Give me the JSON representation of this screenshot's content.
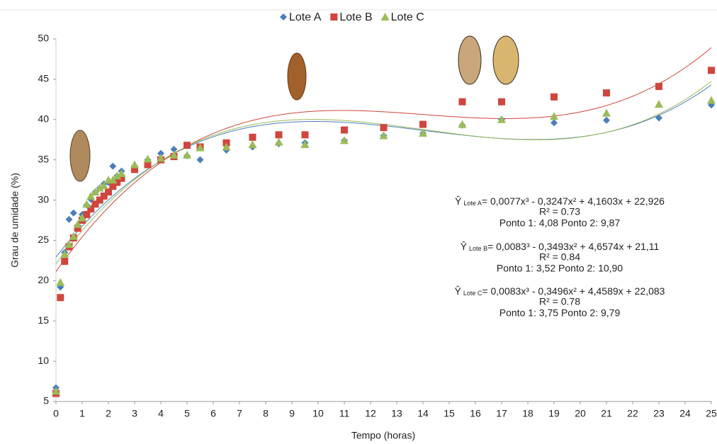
{
  "chart_data": {
    "type": "scatter",
    "xlabel": "Tempo (horas)",
    "ylabel": "Grau de umidade (%)",
    "x": [
      0,
      0.17,
      0.33,
      0.5,
      0.67,
      0.83,
      1,
      1.17,
      1.33,
      1.5,
      1.67,
      1.83,
      2,
      2.17,
      2.33,
      2.5,
      3,
      3.5,
      4,
      4.5,
      5,
      5.5,
      6.5,
      7.5,
      8.5,
      9.5,
      11,
      12.5,
      14,
      15.5,
      17,
      19,
      21,
      23,
      25
    ],
    "xlim": [
      0,
      25
    ],
    "ylim": [
      5,
      50
    ],
    "xticks": [
      0,
      1,
      2,
      3,
      4,
      5,
      6,
      7,
      8,
      9,
      10,
      11,
      12,
      13,
      14,
      15,
      16,
      17,
      18,
      19,
      20,
      21,
      22,
      23,
      24,
      25
    ],
    "yticks": [
      5,
      10,
      15,
      20,
      25,
      30,
      35,
      40,
      45,
      50
    ],
    "grid": false,
    "legend": "top",
    "series": [
      {
        "name": "Lote A",
        "color": "#4a7ebb",
        "marker": "diamond",
        "values": [
          6.7,
          19.2,
          23.5,
          27.6,
          28.4,
          26.8,
          28.2,
          29.4,
          30.1,
          31,
          31.5,
          32,
          32.2,
          34.2,
          33,
          33.6,
          34.2,
          35,
          35.8,
          36.3,
          35.5,
          35,
          36.2,
          36.6,
          37,
          37.1,
          37.4,
          38,
          38.3,
          39.3,
          40,
          39.6,
          39.9,
          40.2,
          41.8
        ],
        "trend": [
          0.0077,
          -0.3247,
          4.1603,
          22.926
        ]
      },
      {
        "name": "Lote B",
        "color": "#d0453d",
        "marker": "square",
        "values": [
          6,
          17.9,
          22.4,
          24.2,
          25.3,
          26.5,
          27.5,
          28.2,
          28.9,
          29.5,
          30,
          30.5,
          31,
          31.7,
          32.2,
          32.7,
          33.8,
          34.4,
          35,
          35.4,
          36.8,
          36.6,
          37.1,
          37.8,
          38.1,
          38.1,
          38.7,
          39,
          39.4,
          42.2,
          42.2,
          42.8,
          43.3,
          44.1,
          46.1
        ],
        "trend": [
          0.0083,
          -0.3493,
          4.6574,
          21.11
        ]
      },
      {
        "name": "Lote C",
        "color": "#9bbb59",
        "marker": "triangle",
        "values": [
          6.3,
          19.8,
          23.3,
          24.5,
          25.5,
          27,
          27.8,
          29.5,
          30.5,
          31,
          31.5,
          31.8,
          32.5,
          32.5,
          33,
          33.3,
          34.4,
          35.1,
          35.2,
          35.6,
          35.6,
          36.5,
          36.6,
          36.9,
          37.2,
          36.9,
          37.4,
          38,
          38.3,
          39.4,
          40,
          40.4,
          40.8,
          41.9,
          42.4
        ],
        "trend": [
          0.0083,
          -0.3496,
          4.4589,
          22.083
        ]
      }
    ],
    "annotations": [
      {
        "y_hat": "Ŷ",
        "subscript": "Lote A",
        "equation": "= 0,0077x³ - 0,3247x² + 4,1603x + 22,926",
        "r2": "R² = 0.73",
        "points": "Ponto 1: 4,08 Ponto 2: 9,87"
      },
      {
        "y_hat": "Ŷ",
        "subscript": "Lote B",
        "equation": "= 0,0083³ - 0,3493x² + 4,6574x + 21,11",
        "r2": "R² = 0.84",
        "points": "Ponto 1: 3,52 Ponto 2: 10,90"
      },
      {
        "y_hat": "Ŷ",
        "subscript": "Lote C",
        "equation": "= 0,0083x³ - 0,3496x² + 4,4589x + 22,083",
        "r2": "R² = 0.78",
        "points": "Ponto 1: 3,75 Ponto 2: 9,79"
      }
    ]
  }
}
